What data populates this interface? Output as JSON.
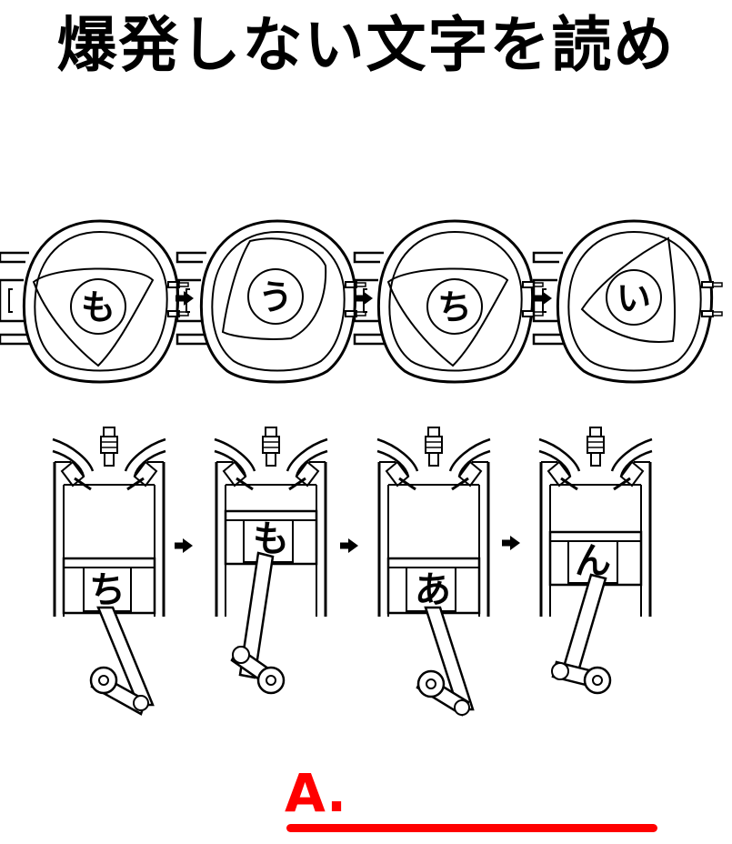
{
  "title": "爆発しない文字を読め",
  "rotary_row": {
    "letters": [
      "も",
      "う",
      "ち",
      "い"
    ]
  },
  "piston_row": {
    "letters": [
      "ち",
      "も",
      "あ",
      "ん"
    ]
  },
  "answer": {
    "label": "A."
  },
  "colors": {
    "ink": "#000000",
    "answer": "#ff0000",
    "background": "#ffffff"
  },
  "icons": [
    "arrow-right-icon",
    "rotary-engine-icon",
    "piston-engine-icon",
    "spark-plug-icon"
  ]
}
